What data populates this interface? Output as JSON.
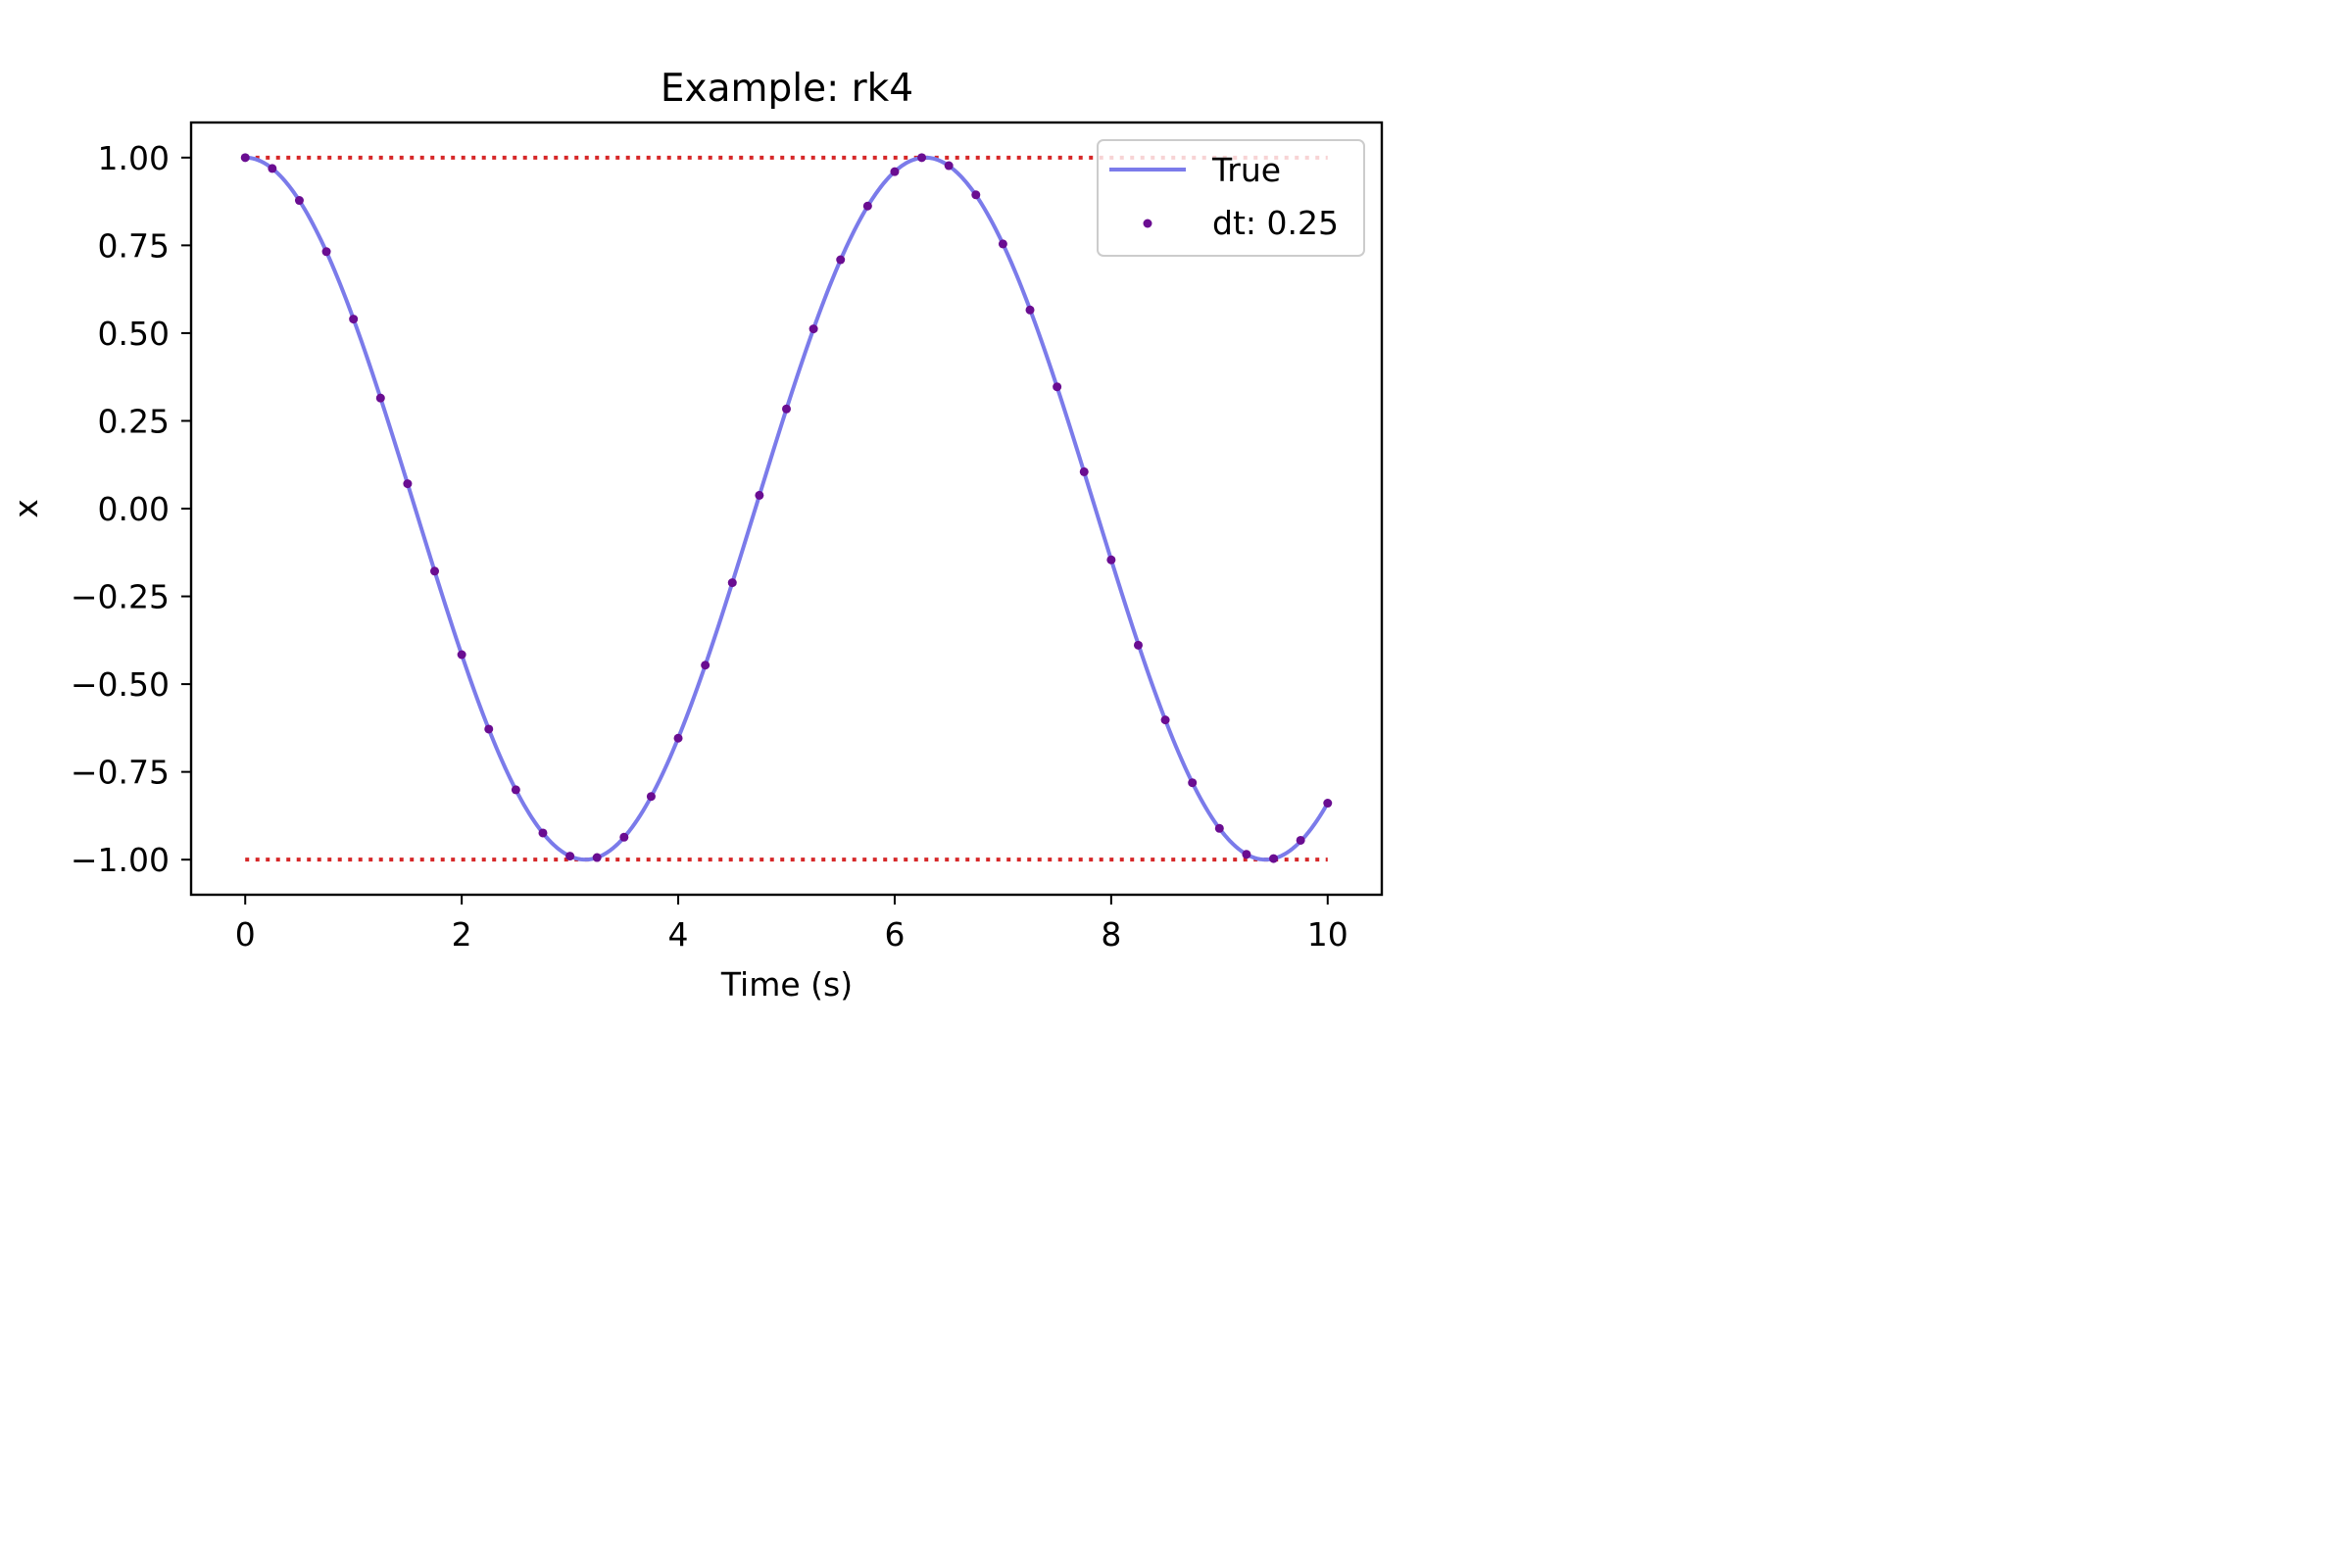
{
  "chart_data": {
    "type": "line",
    "title": "Example: rk4",
    "xlabel": "Time (s)",
    "ylabel": "x",
    "xlim": [
      -0.5,
      10.5
    ],
    "ylim": [
      -1.1,
      1.1
    ],
    "xticks": [
      {
        "value": 0,
        "label": "0"
      },
      {
        "value": 2,
        "label": "2"
      },
      {
        "value": 4,
        "label": "4"
      },
      {
        "value": 6,
        "label": "6"
      },
      {
        "value": 8,
        "label": "8"
      },
      {
        "value": 10,
        "label": "10"
      }
    ],
    "yticks": [
      {
        "value": 1.0,
        "label": "1.00"
      },
      {
        "value": 0.75,
        "label": "0.75"
      },
      {
        "value": 0.5,
        "label": "0.50"
      },
      {
        "value": 0.25,
        "label": "0.25"
      },
      {
        "value": 0.0,
        "label": "0.00"
      },
      {
        "value": -0.25,
        "label": "−0.25"
      },
      {
        "value": -0.5,
        "label": "−0.50"
      },
      {
        "value": -0.75,
        "label": "−0.75"
      },
      {
        "value": -1.0,
        "label": "−1.00"
      }
    ],
    "grid": false,
    "legend_position": "top-right",
    "reference_lines": [
      {
        "y": 1.0,
        "x_range": [
          0,
          10
        ],
        "style": "dotted",
        "color": "#d62728"
      },
      {
        "y": -1.0,
        "x_range": [
          0,
          10
        ],
        "style": "dotted",
        "color": "#d62728"
      }
    ],
    "series": [
      {
        "name": "True",
        "type": "line",
        "color": "#7b7bea",
        "function": "cos(t)",
        "x_range": [
          0,
          10
        ]
      },
      {
        "name": "dt: 0.25",
        "type": "scatter",
        "color": "#6a0d91",
        "x": [
          0,
          0.25,
          0.5,
          0.75,
          1,
          1.25,
          1.5,
          1.75,
          2,
          2.25,
          2.5,
          2.75,
          3,
          3.25,
          3.5,
          3.75,
          4,
          4.25,
          4.5,
          4.75,
          5,
          5.25,
          5.5,
          5.75,
          6,
          6.25,
          6.5,
          6.75,
          7,
          7.25,
          7.5,
          7.75,
          8,
          8.25,
          8.5,
          8.75,
          9,
          9.25,
          9.5,
          9.75,
          10
        ],
        "y": [
          1.0,
          0.969,
          0.878,
          0.732,
          0.54,
          0.315,
          0.071,
          -0.178,
          -0.416,
          -0.628,
          -0.801,
          -0.924,
          -0.99,
          -0.994,
          -0.936,
          -0.82,
          -0.654,
          -0.446,
          -0.211,
          0.038,
          0.284,
          0.512,
          0.709,
          0.862,
          0.96,
          1.0,
          0.977,
          0.894,
          0.754,
          0.566,
          0.347,
          0.105,
          -0.146,
          -0.389,
          -0.602,
          -0.781,
          -0.911,
          -0.985,
          -0.997,
          -0.945,
          -0.839
        ]
      }
    ]
  }
}
